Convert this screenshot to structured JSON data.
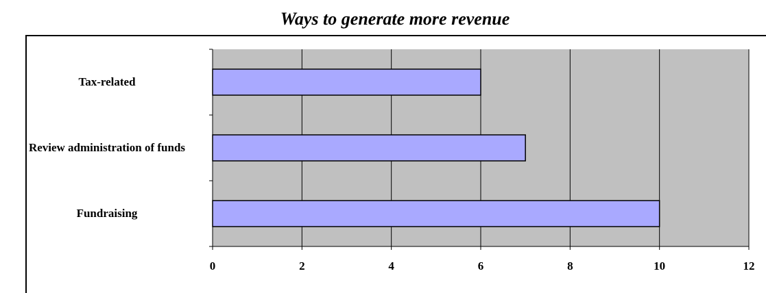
{
  "chart_data": {
    "type": "bar",
    "orientation": "horizontal",
    "title": "Ways to generate more revenue",
    "categories": [
      "Tax-related",
      "Review administration of funds",
      "Fundraising"
    ],
    "values": [
      6,
      7,
      10
    ],
    "color": "#a9a9ff",
    "xlim": [
      0,
      12
    ],
    "xticks": [
      0,
      2,
      4,
      6,
      8,
      10,
      12
    ],
    "grid": true
  }
}
